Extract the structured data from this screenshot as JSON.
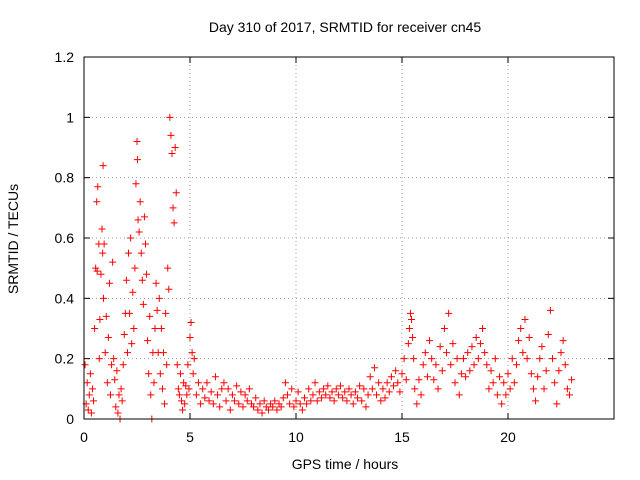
{
  "chart_data": {
    "type": "scatter",
    "title": "Day 310 of 2017, SRMTID for receiver cn45",
    "xlabel": "GPS time / hours",
    "ylabel": "SRMTID / TECUs",
    "xlim": [
      0,
      25
    ],
    "ylim": [
      0,
      1.2
    ],
    "xticks": [
      0,
      5,
      10,
      15,
      20
    ],
    "yticks": [
      0,
      0.2,
      0.4,
      0.6,
      0.8,
      1,
      1.2
    ],
    "xtick_labels": [
      "0",
      "5",
      "10",
      "15",
      "20"
    ],
    "ytick_labels": [
      "0",
      "0.2",
      "0.4",
      "0.6",
      "0.8",
      "1",
      "1.2"
    ],
    "grid": true,
    "marker": "+",
    "color": "#ff0000",
    "series": [
      {
        "name": "SRMTID",
        "points": [
          [
            0.05,
            0.18
          ],
          [
            0.1,
            0.05
          ],
          [
            0.15,
            0.12
          ],
          [
            0.2,
            0.03
          ],
          [
            0.25,
            0.08
          ],
          [
            0.3,
            0.15
          ],
          [
            0.35,
            0.02
          ],
          [
            0.4,
            0.1
          ],
          [
            0.45,
            0.06
          ],
          [
            0.5,
            0.3
          ],
          [
            0.55,
            0.5
          ],
          [
            0.6,
            0.72
          ],
          [
            0.62,
            0.49
          ],
          [
            0.65,
            0.77
          ],
          [
            0.7,
            0.58
          ],
          [
            0.72,
            0.2
          ],
          [
            0.75,
            0.33
          ],
          [
            0.8,
            0.48
          ],
          [
            0.85,
            0.63
          ],
          [
            0.88,
            0.55
          ],
          [
            0.9,
            0.84
          ],
          [
            0.92,
            0.4
          ],
          [
            0.95,
            0.58
          ],
          [
            1.0,
            0.22
          ],
          [
            1.05,
            0.34
          ],
          [
            1.1,
            0.12
          ],
          [
            1.15,
            0.27
          ],
          [
            1.2,
            0.45
          ],
          [
            1.25,
            0.08
          ],
          [
            1.3,
            0.18
          ],
          [
            1.35,
            0.52
          ],
          [
            1.4,
            0.2
          ],
          [
            1.45,
            0.13
          ],
          [
            1.5,
            0.04
          ],
          [
            1.55,
            0.16
          ],
          [
            1.6,
            0.02
          ],
          [
            1.65,
            0.08
          ],
          [
            1.7,
            0.0
          ],
          [
            1.75,
            0.1
          ],
          [
            1.8,
            0.06
          ],
          [
            1.85,
            0.18
          ],
          [
            1.9,
            0.28
          ],
          [
            1.95,
            0.35
          ],
          [
            2.0,
            0.46
          ],
          [
            2.05,
            0.22
          ],
          [
            2.1,
            0.55
          ],
          [
            2.15,
            0.35
          ],
          [
            2.2,
            0.6
          ],
          [
            2.25,
            0.25
          ],
          [
            2.3,
            0.42
          ],
          [
            2.35,
            0.3
          ],
          [
            2.4,
            0.5
          ],
          [
            2.45,
            0.78
          ],
          [
            2.5,
            0.92
          ],
          [
            2.52,
            0.86
          ],
          [
            2.55,
            0.66
          ],
          [
            2.6,
            0.62
          ],
          [
            2.65,
            0.72
          ],
          [
            2.7,
            0.55
          ],
          [
            2.75,
            0.46
          ],
          [
            2.8,
            0.38
          ],
          [
            2.85,
            0.67
          ],
          [
            2.9,
            0.58
          ],
          [
            2.95,
            0.48
          ],
          [
            3.0,
            0.26
          ],
          [
            3.05,
            0.15
          ],
          [
            3.1,
            0.34
          ],
          [
            3.15,
            0.08
          ],
          [
            3.2,
            0.0
          ],
          [
            3.25,
            0.22
          ],
          [
            3.3,
            0.12
          ],
          [
            3.35,
            0.3
          ],
          [
            3.4,
            0.45
          ],
          [
            3.45,
            0.36
          ],
          [
            3.5,
            0.22
          ],
          [
            3.55,
            0.4
          ],
          [
            3.6,
            0.15
          ],
          [
            3.65,
            0.3
          ],
          [
            3.7,
            0.1
          ],
          [
            3.75,
            0.22
          ],
          [
            3.8,
            0.05
          ],
          [
            3.85,
            0.35
          ],
          [
            3.9,
            0.18
          ],
          [
            3.95,
            0.5
          ],
          [
            4.0,
            0.43
          ],
          [
            4.05,
            1.0
          ],
          [
            4.1,
            0.94
          ],
          [
            4.15,
            0.88
          ],
          [
            4.2,
            0.7
          ],
          [
            4.25,
            0.65
          ],
          [
            4.3,
            0.9
          ],
          [
            4.35,
            0.75
          ],
          [
            4.4,
            0.18
          ],
          [
            4.45,
            0.1
          ],
          [
            4.5,
            0.08
          ],
          [
            4.55,
            0.15
          ],
          [
            4.6,
            0.06
          ],
          [
            4.65,
            0.03
          ],
          [
            4.7,
            0.12
          ],
          [
            4.75,
            0.05
          ],
          [
            4.8,
            0.11
          ],
          [
            4.85,
            0.08
          ],
          [
            4.9,
            0.18
          ],
          [
            4.95,
            0.1
          ],
          [
            5.0,
            0.27
          ],
          [
            5.05,
            0.32
          ],
          [
            5.1,
            0.22
          ],
          [
            5.15,
            0.15
          ],
          [
            5.2,
            0.2
          ],
          [
            5.3,
            0.08
          ],
          [
            5.4,
            0.12
          ],
          [
            5.5,
            0.05
          ],
          [
            5.6,
            0.1
          ],
          [
            5.7,
            0.07
          ],
          [
            5.8,
            0.12
          ],
          [
            5.9,
            0.06
          ],
          [
            6.0,
            0.09
          ],
          [
            6.1,
            0.05
          ],
          [
            6.2,
            0.14
          ],
          [
            6.3,
            0.08
          ],
          [
            6.4,
            0.04
          ],
          [
            6.5,
            0.1
          ],
          [
            6.6,
            0.12
          ],
          [
            6.7,
            0.06
          ],
          [
            6.8,
            0.1
          ],
          [
            6.9,
            0.03
          ],
          [
            7.0,
            0.08
          ],
          [
            7.1,
            0.06
          ],
          [
            7.2,
            0.11
          ],
          [
            7.3,
            0.05
          ],
          [
            7.4,
            0.09
          ],
          [
            7.5,
            0.04
          ],
          [
            7.6,
            0.08
          ],
          [
            7.7,
            0.06
          ],
          [
            7.8,
            0.1
          ],
          [
            7.9,
            0.05
          ],
          [
            8.0,
            0.04
          ],
          [
            8.1,
            0.07
          ],
          [
            8.2,
            0.03
          ],
          [
            8.3,
            0.05
          ],
          [
            8.4,
            0.02
          ],
          [
            8.5,
            0.06
          ],
          [
            8.6,
            0.04
          ],
          [
            8.7,
            0.03
          ],
          [
            8.8,
            0.05
          ],
          [
            8.9,
            0.04
          ],
          [
            9.0,
            0.06
          ],
          [
            9.1,
            0.03
          ],
          [
            9.2,
            0.05
          ],
          [
            9.3,
            0.04
          ],
          [
            9.4,
            0.07
          ],
          [
            9.5,
            0.12
          ],
          [
            9.6,
            0.08
          ],
          [
            9.7,
            0.05
          ],
          [
            9.8,
            0.1
          ],
          [
            9.9,
            0.04
          ],
          [
            10.0,
            0.06
          ],
          [
            10.1,
            0.09
          ],
          [
            10.2,
            0.05
          ],
          [
            10.3,
            0.03
          ],
          [
            10.4,
            0.07
          ],
          [
            10.5,
            0.05
          ],
          [
            10.6,
            0.1
          ],
          [
            10.7,
            0.06
          ],
          [
            10.8,
            0.08
          ],
          [
            10.9,
            0.12
          ],
          [
            11.0,
            0.06
          ],
          [
            11.1,
            0.09
          ],
          [
            11.2,
            0.07
          ],
          [
            11.3,
            0.1
          ],
          [
            11.4,
            0.08
          ],
          [
            11.5,
            0.11
          ],
          [
            11.6,
            0.07
          ],
          [
            11.7,
            0.09
          ],
          [
            11.8,
            0.06
          ],
          [
            11.9,
            0.1
          ],
          [
            12.0,
            0.08
          ],
          [
            12.1,
            0.11
          ],
          [
            12.2,
            0.07
          ],
          [
            12.3,
            0.09
          ],
          [
            12.4,
            0.06
          ],
          [
            12.5,
            0.1
          ],
          [
            12.6,
            0.08
          ],
          [
            12.7,
            0.05
          ],
          [
            12.8,
            0.09
          ],
          [
            12.9,
            0.07
          ],
          [
            13.0,
            0.11
          ],
          [
            13.1,
            0.06
          ],
          [
            13.2,
            0.1
          ],
          [
            13.3,
            0.04
          ],
          [
            13.4,
            0.08
          ],
          [
            13.5,
            0.14
          ],
          [
            13.6,
            0.1
          ],
          [
            13.7,
            0.17
          ],
          [
            13.8,
            0.08
          ],
          [
            13.9,
            0.12
          ],
          [
            14.0,
            0.06
          ],
          [
            14.1,
            0.1
          ],
          [
            14.2,
            0.07
          ],
          [
            14.3,
            0.12
          ],
          [
            14.4,
            0.09
          ],
          [
            14.5,
            0.14
          ],
          [
            14.6,
            0.11
          ],
          [
            14.7,
            0.16
          ],
          [
            14.8,
            0.12
          ],
          [
            14.9,
            0.09
          ],
          [
            15.0,
            0.15
          ],
          [
            15.1,
            0.2
          ],
          [
            15.2,
            0.13
          ],
          [
            15.3,
            0.25
          ],
          [
            15.35,
            0.3
          ],
          [
            15.4,
            0.35
          ],
          [
            15.45,
            0.33
          ],
          [
            15.5,
            0.27
          ],
          [
            15.55,
            0.2
          ],
          [
            15.6,
            0.1
          ],
          [
            15.7,
            0.05
          ],
          [
            15.8,
            0.13
          ],
          [
            15.9,
            0.08
          ],
          [
            16.0,
            0.18
          ],
          [
            16.1,
            0.22
          ],
          [
            16.2,
            0.14
          ],
          [
            16.3,
            0.26
          ],
          [
            16.4,
            0.2
          ],
          [
            16.5,
            0.13
          ],
          [
            16.6,
            0.18
          ],
          [
            16.7,
            0.1
          ],
          [
            16.8,
            0.24
          ],
          [
            16.9,
            0.16
          ],
          [
            17.0,
            0.3
          ],
          [
            17.1,
            0.22
          ],
          [
            17.2,
            0.35
          ],
          [
            17.3,
            0.18
          ],
          [
            17.4,
            0.25
          ],
          [
            17.5,
            0.12
          ],
          [
            17.6,
            0.2
          ],
          [
            17.7,
            0.08
          ],
          [
            17.8,
            0.15
          ],
          [
            17.9,
            0.2
          ],
          [
            18.0,
            0.14
          ],
          [
            18.1,
            0.22
          ],
          [
            18.2,
            0.16
          ],
          [
            18.3,
            0.24
          ],
          [
            18.4,
            0.18
          ],
          [
            18.5,
            0.27
          ],
          [
            18.6,
            0.2
          ],
          [
            18.7,
            0.25
          ],
          [
            18.8,
            0.3
          ],
          [
            18.9,
            0.22
          ],
          [
            19.0,
            0.18
          ],
          [
            19.1,
            0.1
          ],
          [
            19.2,
            0.16
          ],
          [
            19.3,
            0.12
          ],
          [
            19.4,
            0.2
          ],
          [
            19.5,
            0.08
          ],
          [
            19.6,
            0.14
          ],
          [
            19.7,
            0.05
          ],
          [
            19.8,
            0.12
          ],
          [
            19.9,
            0.08
          ],
          [
            20.0,
            0.15
          ],
          [
            20.1,
            0.1
          ],
          [
            20.2,
            0.2
          ],
          [
            20.3,
            0.12
          ],
          [
            20.4,
            0.18
          ],
          [
            20.5,
            0.26
          ],
          [
            20.6,
            0.3
          ],
          [
            20.7,
            0.22
          ],
          [
            20.8,
            0.33
          ],
          [
            20.9,
            0.2
          ],
          [
            21.0,
            0.27
          ],
          [
            21.1,
            0.15
          ],
          [
            21.2,
            0.1
          ],
          [
            21.3,
            0.06
          ],
          [
            21.4,
            0.14
          ],
          [
            21.5,
            0.2
          ],
          [
            21.6,
            0.24
          ],
          [
            21.7,
            0.1
          ],
          [
            21.8,
            0.16
          ],
          [
            21.9,
            0.28
          ],
          [
            22.0,
            0.36
          ],
          [
            22.1,
            0.2
          ],
          [
            22.2,
            0.12
          ],
          [
            22.3,
            0.05
          ],
          [
            22.4,
            0.16
          ],
          [
            22.5,
            0.22
          ],
          [
            22.6,
            0.26
          ],
          [
            22.7,
            0.18
          ],
          [
            22.8,
            0.1
          ],
          [
            22.9,
            0.08
          ],
          [
            23.0,
            0.13
          ]
        ]
      }
    ]
  }
}
